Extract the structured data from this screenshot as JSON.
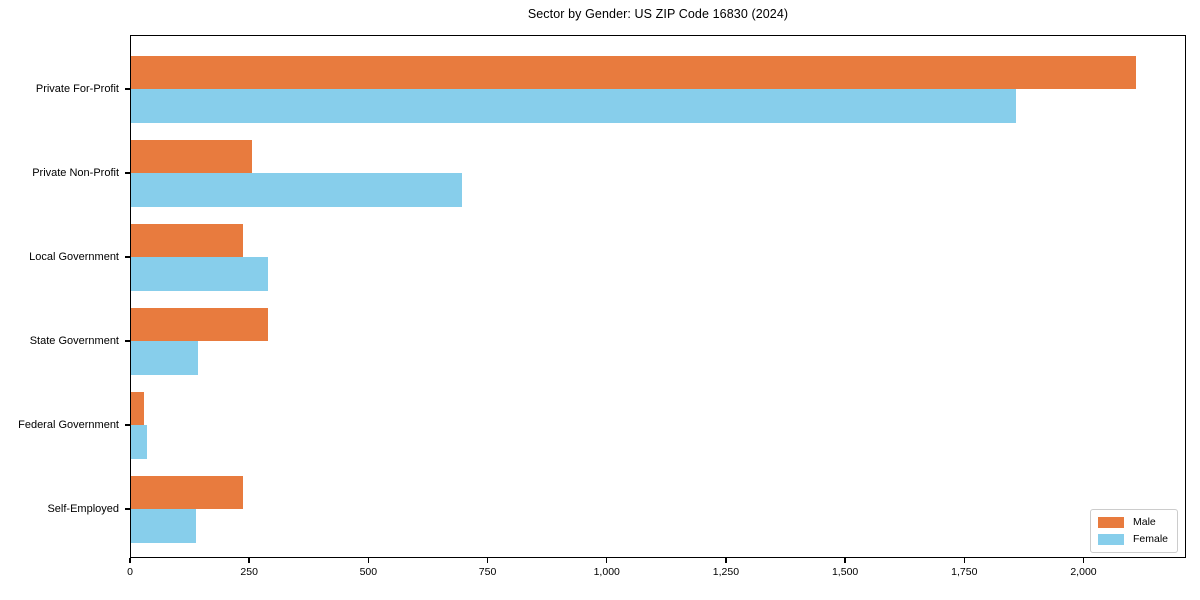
{
  "title": "Sector by Gender: US ZIP Code 16830 (2024)",
  "chart_data": {
    "type": "bar",
    "orientation": "horizontal",
    "title": "Sector by Gender: US ZIP Code 16830 (2024)",
    "categories": [
      "Private For-Profit",
      "Private Non-Profit",
      "Local Government",
      "State Government",
      "Federal Government",
      "Self-Employed"
    ],
    "series": [
      {
        "name": "Male",
        "color": "#E87B3E",
        "values": [
          2110,
          255,
          237,
          290,
          30,
          237
        ]
      },
      {
        "name": "Female",
        "color": "#87CEEB",
        "values": [
          1858,
          696,
          290,
          143,
          35,
          138
        ]
      }
    ],
    "xlabel": "",
    "ylabel": "",
    "xlim": [
      0,
      2215
    ],
    "xticks": [
      0,
      250,
      500,
      750,
      1000,
      1250,
      1500,
      1750,
      2000
    ],
    "xtick_labels": [
      "0",
      "250",
      "500",
      "750",
      "1,000",
      "1,250",
      "1,500",
      "1,750",
      "2,000"
    ],
    "grid": false,
    "legend": {
      "position": "lower-right",
      "entries": [
        "Male",
        "Female"
      ]
    },
    "frame_color": "#000000",
    "background_color": "#ffffff"
  }
}
